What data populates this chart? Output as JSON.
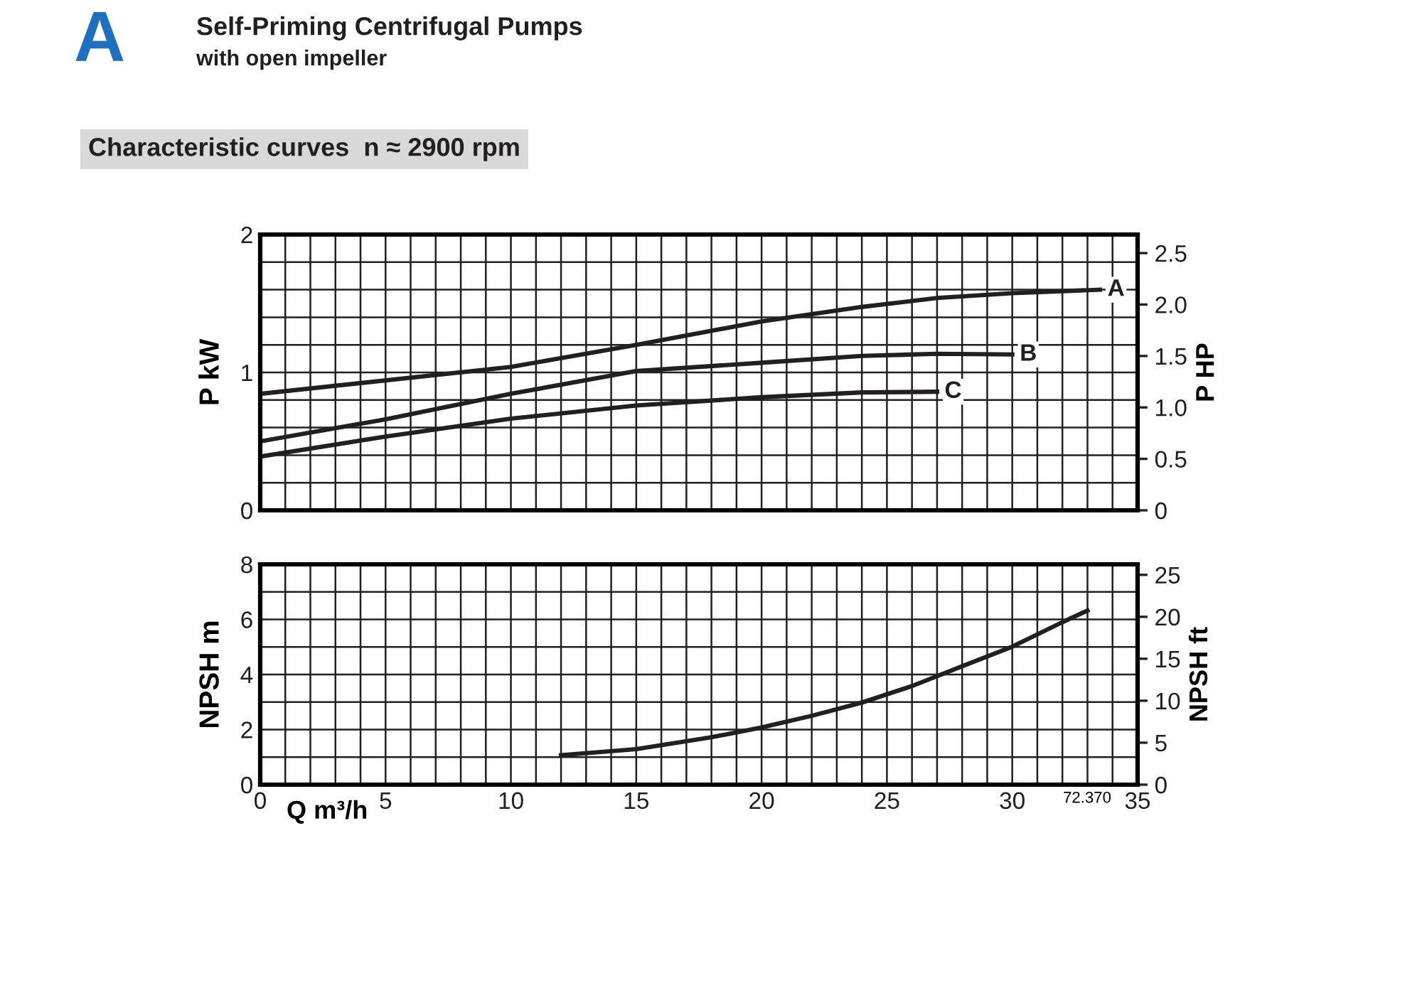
{
  "chart_data": [
    {
      "type": "line",
      "title": "Self-Priming Centrifugal Pumps",
      "subtitle": "with open impeller",
      "annotations": [
        "A",
        "Characteristic curves  n ≈ 2900 rpm"
      ],
      "ylabel": "P kW",
      "y2label": "P HP",
      "tick_labels": "y",
      "grid": true,
      "legend": false,
      "marker": "none",
      "line_style": "solid",
      "xlim": [
        0,
        35
      ],
      "xticks": [
        {
          "value": 0,
          "label": null
        },
        {
          "value": 1,
          "label": null
        },
        {
          "value": 2,
          "label": null
        },
        {
          "value": 3,
          "label": null
        },
        {
          "value": 4,
          "label": null
        },
        {
          "value": 5,
          "label": null
        },
        {
          "value": 6,
          "label": null
        },
        {
          "value": 7,
          "label": null
        },
        {
          "value": 8,
          "label": null
        },
        {
          "value": 9,
          "label": null
        },
        {
          "value": 10,
          "label": null
        },
        {
          "value": 11,
          "label": null
        },
        {
          "value": 12,
          "label": null
        },
        {
          "value": 13,
          "label": null
        },
        {
          "value": 14,
          "label": null
        },
        {
          "value": 15,
          "label": null
        },
        {
          "value": 16,
          "label": null
        },
        {
          "value": 17,
          "label": null
        },
        {
          "value": 18,
          "label": null
        },
        {
          "value": 19,
          "label": null
        },
        {
          "value": 20,
          "label": null
        },
        {
          "value": 21,
          "label": null
        },
        {
          "value": 22,
          "label": null
        },
        {
          "value": 23,
          "label": null
        },
        {
          "value": 24,
          "label": null
        },
        {
          "value": 25,
          "label": null
        },
        {
          "value": 26,
          "label": null
        },
        {
          "value": 27,
          "label": null
        },
        {
          "value": 28,
          "label": null
        },
        {
          "value": 29,
          "label": null
        },
        {
          "value": 30,
          "label": null
        },
        {
          "value": 31,
          "label": null
        },
        {
          "value": 32,
          "label": null
        },
        {
          "value": 33,
          "label": null
        },
        {
          "value": 34,
          "label": null
        },
        {
          "value": 35,
          "label": null
        }
      ],
      "ylim": [
        0,
        2
      ],
      "yticks": [
        0,
        {
          "value": 0.2,
          "label": null
        },
        {
          "value": 0.4,
          "label": null
        },
        {
          "value": 0.6,
          "label": null
        },
        {
          "value": 0.8,
          "label": null
        },
        1,
        {
          "value": 1.2,
          "label": null
        },
        {
          "value": 1.4,
          "label": null
        },
        {
          "value": 1.6,
          "label": null
        },
        {
          "value": 1.8,
          "label": null
        },
        2
      ],
      "y2lim": [
        0,
        2.68
      ],
      "y2ticks": [
        0,
        {
          "value": 0.5,
          "label": "0.5"
        },
        {
          "value": 1,
          "label": "1.0"
        },
        {
          "value": 1.5,
          "label": "1.5"
        },
        {
          "value": 2,
          "label": "2.0"
        },
        {
          "value": 2.5,
          "label": "2.5"
        }
      ],
      "series": [
        {
          "name": "A",
          "color": "#231f20",
          "x": [
            0,
            10,
            15,
            20,
            24,
            27,
            30,
            33.5
          ],
          "values": [
            0.845,
            1.04,
            1.2,
            1.37,
            1.475,
            1.54,
            1.575,
            1.6
          ]
        },
        {
          "name": "B",
          "color": "#231f20",
          "x": [
            0,
            5,
            10,
            15,
            20,
            24,
            27,
            30
          ],
          "values": [
            0.5,
            0.66,
            0.845,
            1.01,
            1.07,
            1.12,
            1.135,
            1.13
          ]
        },
        {
          "name": "C",
          "color": "#231f20",
          "x": [
            0,
            5,
            10,
            15,
            20,
            24,
            27
          ],
          "values": [
            0.39,
            0.535,
            0.665,
            0.76,
            0.82,
            0.855,
            0.86
          ]
        }
      ]
    },
    {
      "type": "line",
      "xlabel": "Q m³/h",
      "ylabel": "NPSH m",
      "y2label": "NPSH ft",
      "annotations": [
        "72.370"
      ],
      "grid": true,
      "legend": false,
      "marker": "none",
      "line_style": "solid",
      "xlim": [
        0,
        35
      ],
      "xticks": [
        0,
        {
          "value": 1,
          "label": null
        },
        {
          "value": 2,
          "label": null
        },
        {
          "value": 3,
          "label": null
        },
        {
          "value": 4,
          "label": null
        },
        5,
        {
          "value": 6,
          "label": null
        },
        {
          "value": 7,
          "label": null
        },
        {
          "value": 8,
          "label": null
        },
        {
          "value": 9,
          "label": null
        },
        10,
        {
          "value": 11,
          "label": null
        },
        {
          "value": 12,
          "label": null
        },
        {
          "value": 13,
          "label": null
        },
        {
          "value": 14,
          "label": null
        },
        15,
        {
          "value": 16,
          "label": null
        },
        {
          "value": 17,
          "label": null
        },
        {
          "value": 18,
          "label": null
        },
        {
          "value": 19,
          "label": null
        },
        20,
        {
          "value": 21,
          "label": null
        },
        {
          "value": 22,
          "label": null
        },
        {
          "value": 23,
          "label": null
        },
        {
          "value": 24,
          "label": null
        },
        25,
        {
          "value": 26,
          "label": null
        },
        {
          "value": 27,
          "label": null
        },
        {
          "value": 28,
          "label": null
        },
        {
          "value": 29,
          "label": null
        },
        30,
        {
          "value": 31,
          "label": null
        },
        {
          "value": 32,
          "label": null
        },
        {
          "value": 33,
          "label": null
        },
        {
          "value": 34,
          "label": null
        },
        35
      ],
      "ylim": [
        0,
        8
      ],
      "yticks": [
        0,
        {
          "value": 1,
          "label": null
        },
        2,
        {
          "value": 3,
          "label": null
        },
        4,
        {
          "value": 5,
          "label": null
        },
        6,
        {
          "value": 7,
          "label": null
        },
        8
      ],
      "y2lim": [
        0,
        26.25
      ],
      "y2ticks": [
        0,
        5,
        10,
        15,
        20,
        25
      ],
      "series": [
        {
          "color": "#231f20",
          "x": [
            12,
            15,
            18,
            20,
            22,
            24,
            26,
            28,
            30,
            32,
            33
          ],
          "values": [
            1.07,
            1.29,
            1.72,
            2.08,
            2.5,
            2.98,
            3.58,
            4.3,
            5.01,
            5.9,
            6.32
          ]
        }
      ]
    }
  ]
}
